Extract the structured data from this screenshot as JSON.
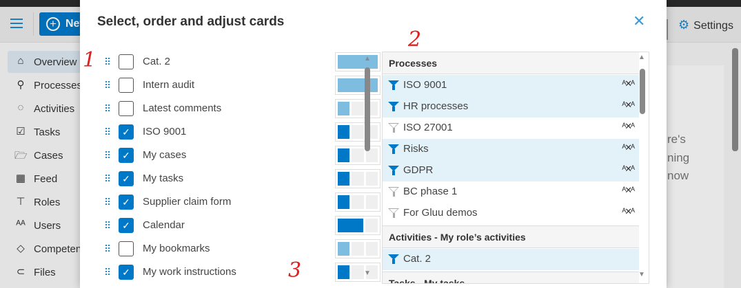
{
  "app": {
    "new_label": "New",
    "settings_label": "Settings",
    "sidebar": [
      {
        "label": "Overview",
        "icon": "home-icon",
        "active": true
      },
      {
        "label": "Processes",
        "icon": "process-icon"
      },
      {
        "label": "Activities",
        "icon": "activities-icon"
      },
      {
        "label": "Tasks",
        "icon": "tasks-icon"
      },
      {
        "label": "Cases",
        "icon": "folder-icon"
      },
      {
        "label": "Feed",
        "icon": "feed-icon"
      },
      {
        "label": "Roles",
        "icon": "shirt-icon"
      },
      {
        "label": "Users",
        "icon": "users-icon"
      },
      {
        "label": "Competences",
        "icon": "diamond-icon"
      },
      {
        "label": "Files",
        "icon": "paperclip-icon"
      }
    ],
    "content_fragments": [
      "re's",
      "ning",
      "now"
    ]
  },
  "modal": {
    "title": "Select, order and adjust cards",
    "cards": [
      {
        "label": "Cat. 2",
        "checked": false,
        "width": 3
      },
      {
        "label": "Intern audit",
        "checked": false,
        "width": 3
      },
      {
        "label": "Latest comments",
        "checked": false,
        "width": 1
      },
      {
        "label": "ISO 9001",
        "checked": true,
        "width": 1
      },
      {
        "label": "My cases",
        "checked": true,
        "width": 1
      },
      {
        "label": "My tasks",
        "checked": true,
        "width": 1
      },
      {
        "label": "Supplier claim form",
        "checked": true,
        "width": 1
      },
      {
        "label": "Calendar",
        "checked": true,
        "width": 2
      },
      {
        "label": "My bookmarks",
        "checked": false,
        "width": 1
      },
      {
        "label": "My work instructions",
        "checked": true,
        "width": 1
      }
    ],
    "filter_sections": [
      {
        "title": "Processes",
        "items": [
          {
            "label": "ISO 9001",
            "active": true
          },
          {
            "label": "HR processes",
            "active": true
          },
          {
            "label": "ISO 27001",
            "active": false
          },
          {
            "label": "Risks",
            "active": true
          },
          {
            "label": "GDPR",
            "active": true
          },
          {
            "label": "BC phase 1",
            "active": false
          },
          {
            "label": "For Gluu demos",
            "active": false
          }
        ]
      },
      {
        "title": "Activities - My role’s activities",
        "items": [
          {
            "label": "Cat. 2",
            "active": true
          }
        ]
      },
      {
        "title": "Tasks - My tasks",
        "items": []
      }
    ]
  },
  "annotations": [
    "1",
    "2",
    "3"
  ],
  "colors": {
    "accent": "#0078c8",
    "accent_light": "#7fbde0",
    "selected_row": "#e3f1f9",
    "annotation": "#e02020"
  }
}
